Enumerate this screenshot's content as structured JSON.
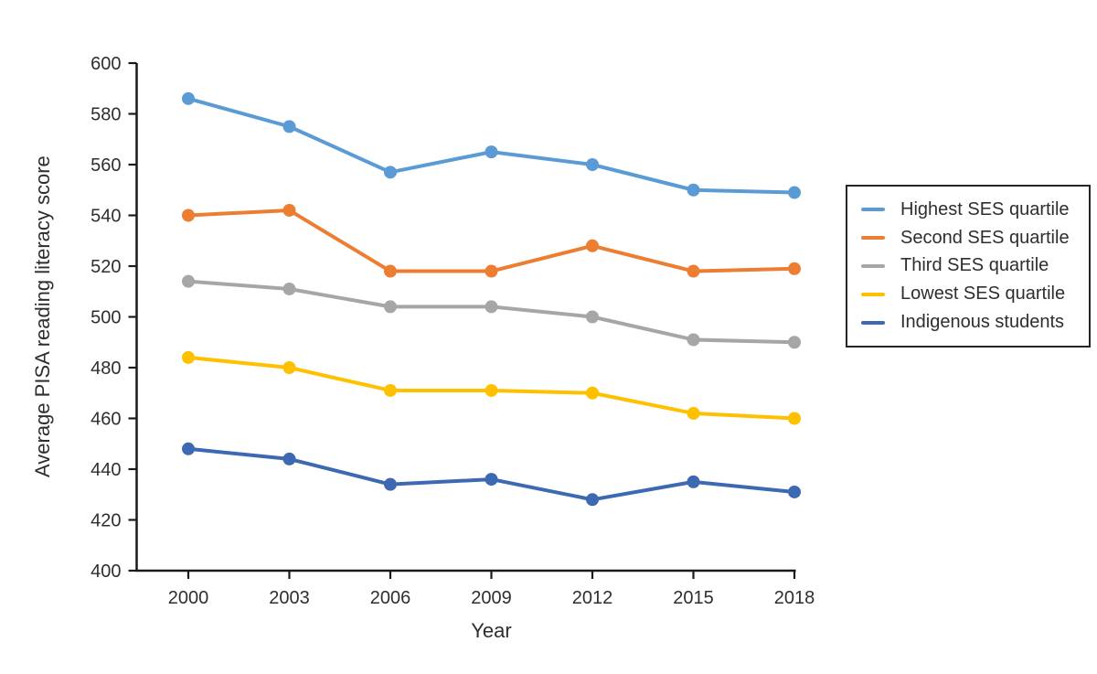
{
  "chart_data": {
    "type": "line",
    "title": "",
    "xlabel": "Year",
    "ylabel": "Average PISA reading literacy score",
    "categories": [
      "2000",
      "2003",
      "2006",
      "2009",
      "2012",
      "2015",
      "2018"
    ],
    "series": [
      {
        "name": "Highest SES quartile",
        "color": "#5B9BD5",
        "values": [
          586,
          575,
          557,
          565,
          560,
          550,
          549
        ]
      },
      {
        "name": "Second SES quartile",
        "color": "#ED7D31",
        "values": [
          540,
          542,
          518,
          518,
          528,
          518,
          519
        ]
      },
      {
        "name": "Third SES quartile",
        "color": "#A6A6A6",
        "values": [
          514,
          511,
          504,
          504,
          500,
          491,
          490
        ]
      },
      {
        "name": "Lowest SES quartile",
        "color": "#FFC000",
        "values": [
          484,
          480,
          471,
          471,
          470,
          462,
          460
        ]
      },
      {
        "name": "Indigenous students",
        "color": "#3D69B2",
        "values": [
          448,
          444,
          434,
          436,
          428,
          435,
          431
        ]
      }
    ],
    "ylim": [
      400,
      600
    ],
    "yticks": [
      400,
      420,
      440,
      460,
      480,
      500,
      520,
      540,
      560,
      580,
      600
    ],
    "grid": false,
    "legend_position": "right",
    "marker": "circle"
  },
  "style": {
    "background": "#ffffff",
    "axis_color": "#1a1a1a",
    "text_color": "#2e2e2e",
    "legend_border_color": "#262626"
  }
}
